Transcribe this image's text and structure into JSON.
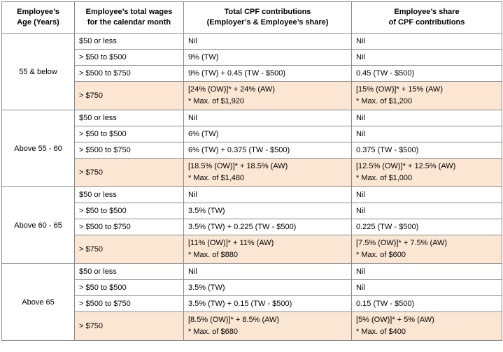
{
  "headers": {
    "age": [
      "Employee’s",
      "Age (Years)"
    ],
    "wages": [
      "Employee’s total wages",
      "for the calendar month"
    ],
    "total": [
      "Total CPF contributions",
      "(Employer’s & Employee’s share)"
    ],
    "employee": [
      "Employee’s share",
      "of CPF contributions"
    ]
  },
  "groups": [
    {
      "age": "55 & below",
      "rows": [
        {
          "wage": "$50 or less",
          "total": "Nil",
          "employee": "Nil"
        },
        {
          "wage": "> $50 to $500",
          "total": "9% (TW)",
          "employee": "Nil"
        },
        {
          "wage": "> $500 to $750",
          "total": "9% (TW) + 0.45 (TW - $500)",
          "employee": "0.45 (TW - $500)"
        },
        {
          "wage": "> $750",
          "total": "[24% (OW)]* + 24% (AW)",
          "total_max": "* Max. of $1,920",
          "employee": "[15% (OW)]* + 15% (AW)",
          "employee_max": "* Max. of $1,200"
        }
      ]
    },
    {
      "age": "Above 55 - 60",
      "rows": [
        {
          "wage": "$50 or less",
          "total": "Nil",
          "employee": "Nil"
        },
        {
          "wage": "> $50 to $500",
          "total": "6% (TW)",
          "employee": "Nil"
        },
        {
          "wage": "> $500 to $750",
          "total": "6% (TW) + 0.375 (TW - $500)",
          "employee": "0.375 (TW - $500)"
        },
        {
          "wage": "> $750",
          "total": "[18.5% (OW)]* + 18.5% (AW)",
          "total_max": "* Max. of $1,480",
          "employee": "[12.5% (OW)]* + 12.5% (AW)",
          "employee_max": "* Max. of $1,000"
        }
      ]
    },
    {
      "age": "Above 60 - 65",
      "rows": [
        {
          "wage": "$50 or less",
          "total": "Nil",
          "employee": "Nil"
        },
        {
          "wage": "> $50 to $500",
          "total": "3.5% (TW)",
          "employee": "Nil"
        },
        {
          "wage": "> $500 to $750",
          "total": "3.5% (TW) + 0.225 (TW - $500)",
          "employee": "0.225 (TW - $500)"
        },
        {
          "wage": "> $750",
          "total": "[11% (OW)]* + 11% (AW)",
          "total_max": "* Max. of $880",
          "employee": "[7.5% (OW)]* + 7.5% (AW)",
          "employee_max": "* Max. of $600"
        }
      ]
    },
    {
      "age": "Above 65",
      "rows": [
        {
          "wage": "$50 or less",
          "total": "Nil",
          "employee": "Nil"
        },
        {
          "wage": "> $50 to $500",
          "total": "3.5% (TW)",
          "employee": "Nil"
        },
        {
          "wage": "> $500 to $750",
          "total": "3.5% (TW) + 0.15 (TW - $500)",
          "employee": "0.15 (TW - $500)"
        },
        {
          "wage": "> $750",
          "total": "[8.5% (OW)]* + 8.5% (AW)",
          "total_max": "* Max. of $680",
          "employee": "[5% (OW)]* + 5% (AW)",
          "employee_max": "* Max. of $400"
        }
      ]
    }
  ],
  "colors": {
    "highlight": "#fbe6d3",
    "border": "#8a8a8a"
  }
}
